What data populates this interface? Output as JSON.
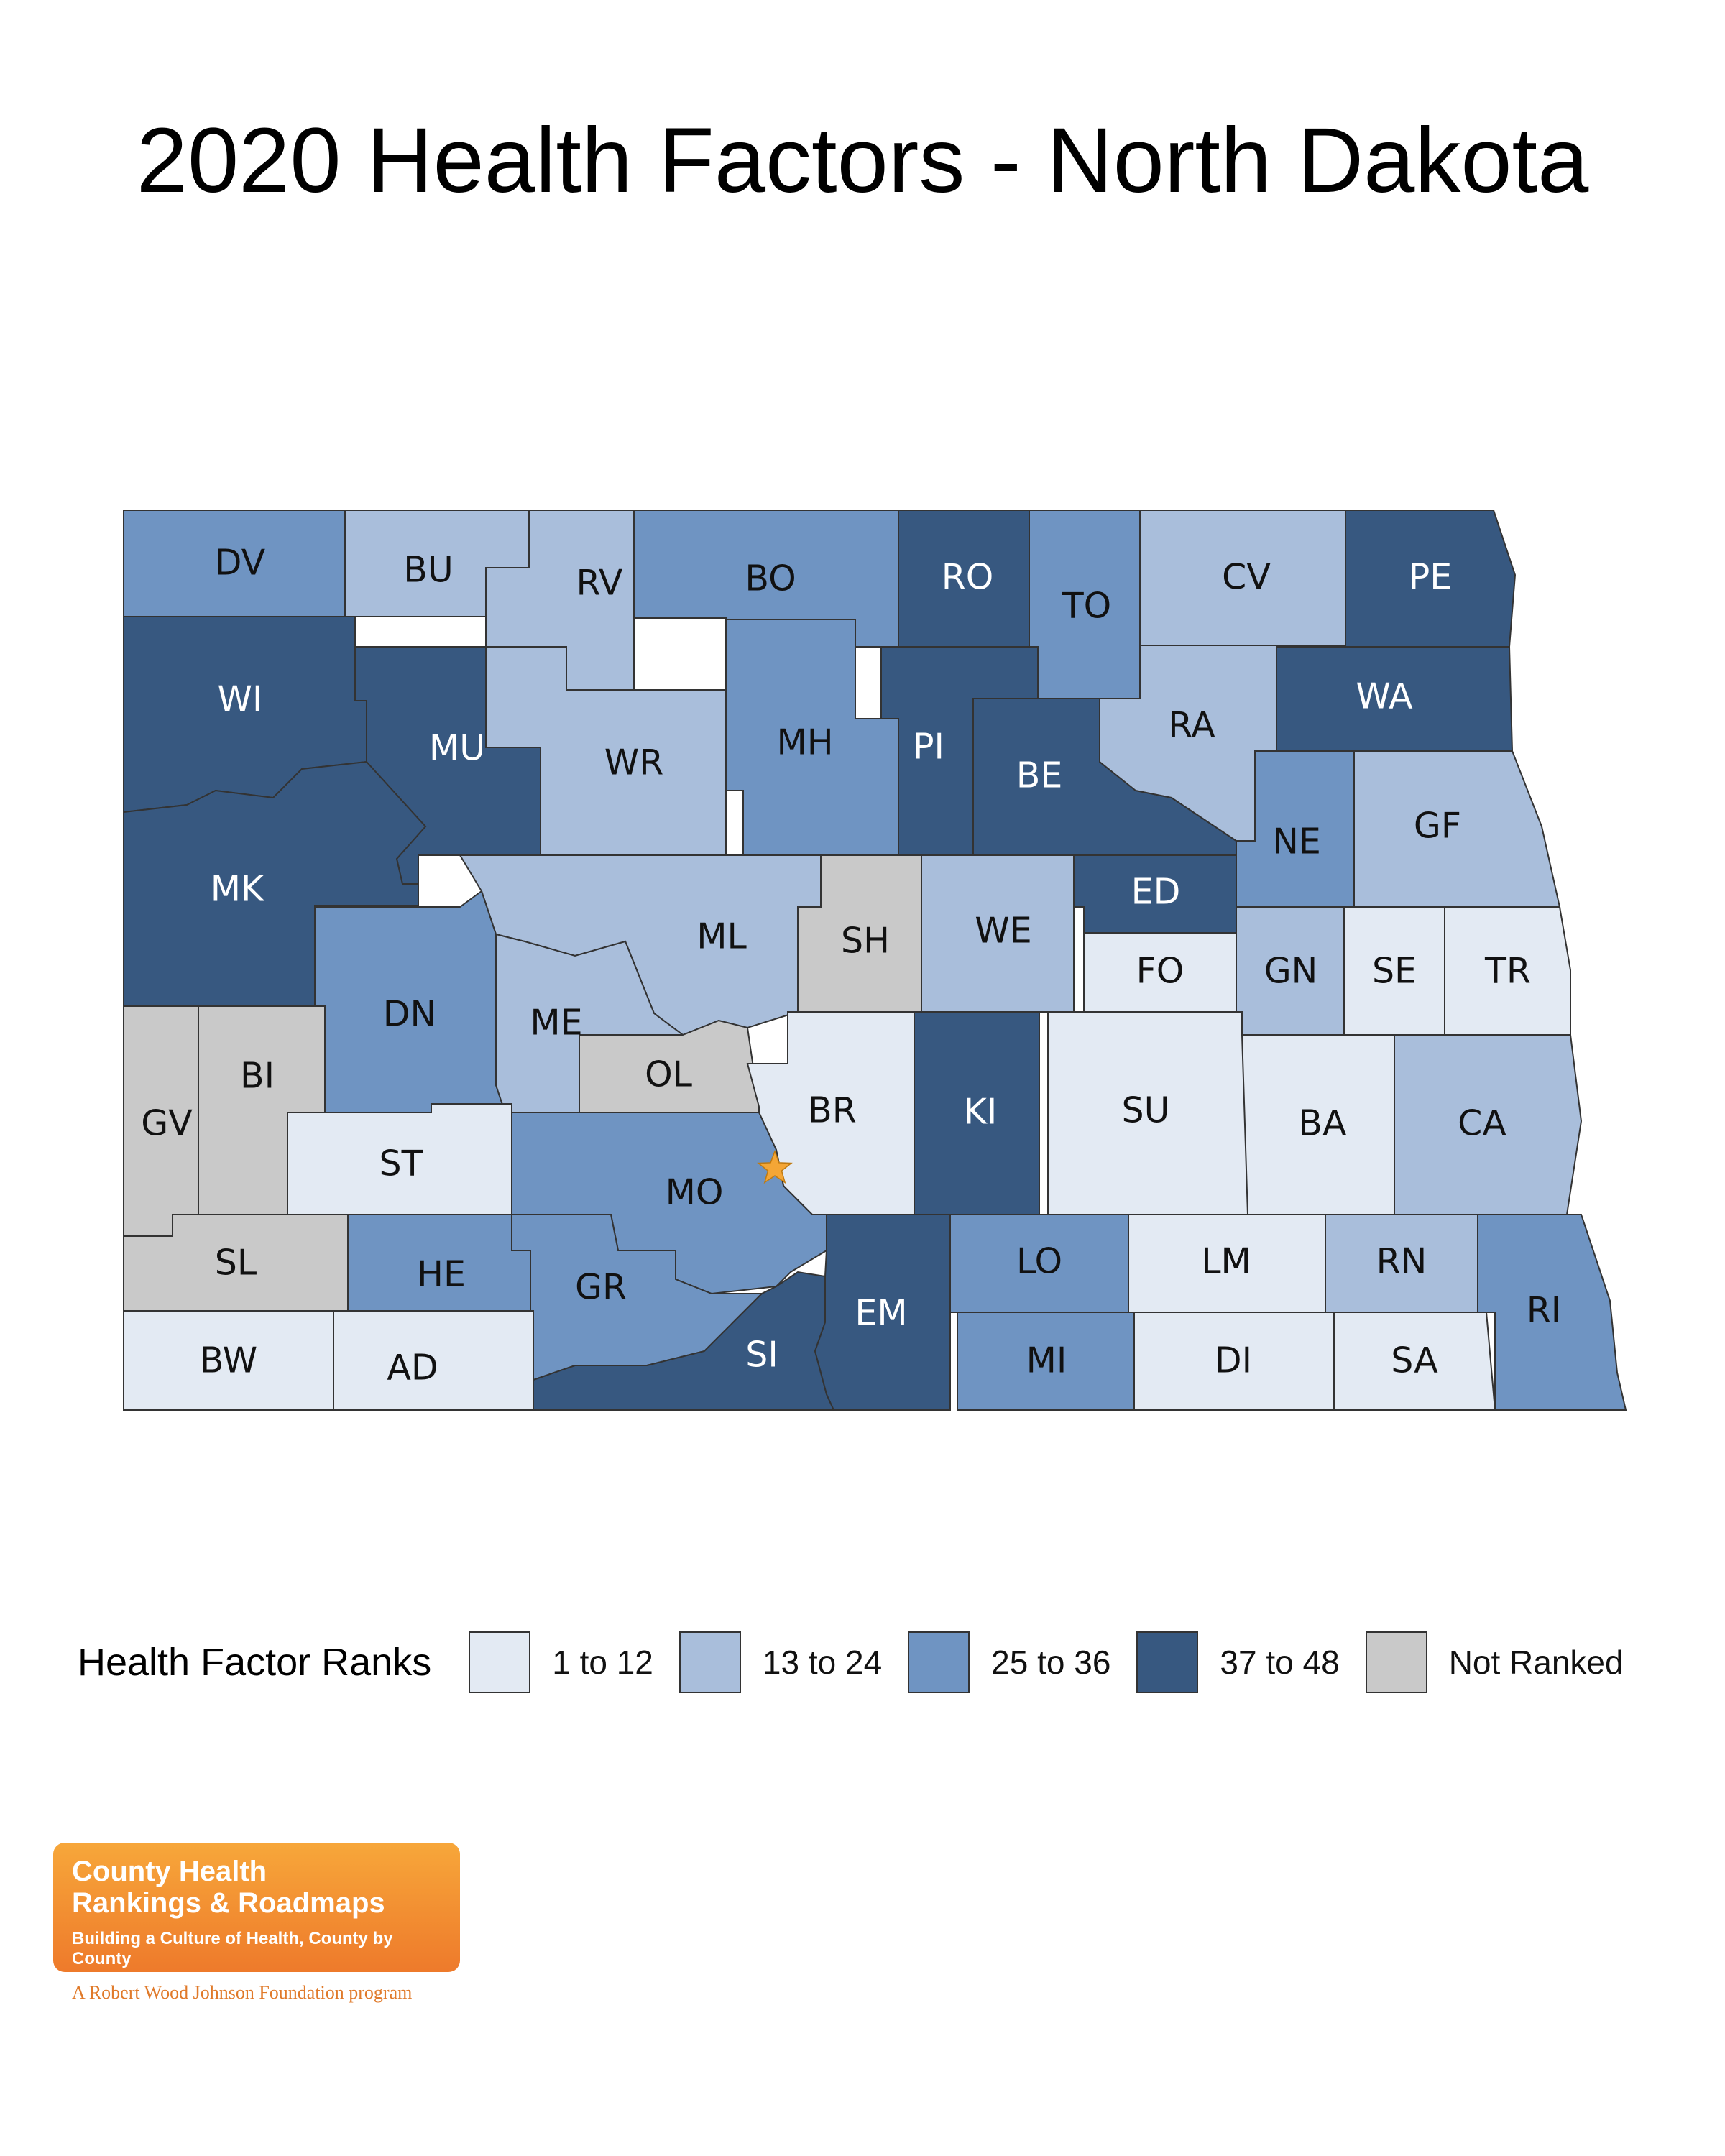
{
  "title": "2020 Health Factors - North Dakota",
  "colors": {
    "q1": "#e3eaf3",
    "q2": "#a9bedb",
    "q3": "#6f94c2",
    "q4": "#375880",
    "nr": "#c9c9c9",
    "marker": "#f4a636"
  },
  "legend": {
    "title": "Health Factor Ranks",
    "items": [
      {
        "label": "1 to 12",
        "key": "q1"
      },
      {
        "label": "13 to 24",
        "key": "q2"
      },
      {
        "label": "25 to 36",
        "key": "q3"
      },
      {
        "label": "37 to 48",
        "key": "q4"
      },
      {
        "label": "Not Ranked",
        "key": "nr"
      }
    ]
  },
  "counties": [
    {
      "abbr": "DV",
      "rank_group": "q3"
    },
    {
      "abbr": "BU",
      "rank_group": "q2"
    },
    {
      "abbr": "RV",
      "rank_group": "q2"
    },
    {
      "abbr": "BO",
      "rank_group": "q3"
    },
    {
      "abbr": "RO",
      "rank_group": "q4"
    },
    {
      "abbr": "TO",
      "rank_group": "q3"
    },
    {
      "abbr": "CV",
      "rank_group": "q2"
    },
    {
      "abbr": "PE",
      "rank_group": "q4"
    },
    {
      "abbr": "WI",
      "rank_group": "q4"
    },
    {
      "abbr": "MU",
      "rank_group": "q4"
    },
    {
      "abbr": "WR",
      "rank_group": "q2"
    },
    {
      "abbr": "MH",
      "rank_group": "q3"
    },
    {
      "abbr": "PI",
      "rank_group": "q4"
    },
    {
      "abbr": "BE",
      "rank_group": "q4"
    },
    {
      "abbr": "RA",
      "rank_group": "q2"
    },
    {
      "abbr": "WA",
      "rank_group": "q4"
    },
    {
      "abbr": "MK",
      "rank_group": "q4"
    },
    {
      "abbr": "NE",
      "rank_group": "q3"
    },
    {
      "abbr": "GF",
      "rank_group": "q2"
    },
    {
      "abbr": "ML",
      "rank_group": "q2"
    },
    {
      "abbr": "SH",
      "rank_group": "nr"
    },
    {
      "abbr": "WE",
      "rank_group": "q2"
    },
    {
      "abbr": "ED",
      "rank_group": "q4"
    },
    {
      "abbr": "FO",
      "rank_group": "q1"
    },
    {
      "abbr": "GN",
      "rank_group": "q2"
    },
    {
      "abbr": "SE",
      "rank_group": "q1"
    },
    {
      "abbr": "TR",
      "rank_group": "q1"
    },
    {
      "abbr": "DN",
      "rank_group": "q3"
    },
    {
      "abbr": "ME",
      "rank_group": "q2"
    },
    {
      "abbr": "OL",
      "rank_group": "nr"
    },
    {
      "abbr": "BR",
      "rank_group": "q1"
    },
    {
      "abbr": "KI",
      "rank_group": "q4"
    },
    {
      "abbr": "SU",
      "rank_group": "q1"
    },
    {
      "abbr": "BA",
      "rank_group": "q1"
    },
    {
      "abbr": "CA",
      "rank_group": "q2"
    },
    {
      "abbr": "GV",
      "rank_group": "nr"
    },
    {
      "abbr": "BI",
      "rank_group": "nr"
    },
    {
      "abbr": "ST",
      "rank_group": "q1"
    },
    {
      "abbr": "MO",
      "rank_group": "q3"
    },
    {
      "abbr": "SL",
      "rank_group": "nr"
    },
    {
      "abbr": "HE",
      "rank_group": "q3"
    },
    {
      "abbr": "GR",
      "rank_group": "q3"
    },
    {
      "abbr": "SI",
      "rank_group": "q4"
    },
    {
      "abbr": "EM",
      "rank_group": "q4"
    },
    {
      "abbr": "LO",
      "rank_group": "q3"
    },
    {
      "abbr": "LM",
      "rank_group": "q1"
    },
    {
      "abbr": "RN",
      "rank_group": "q2"
    },
    {
      "abbr": "RI",
      "rank_group": "q3"
    },
    {
      "abbr": "BW",
      "rank_group": "q1"
    },
    {
      "abbr": "AD",
      "rank_group": "q1"
    },
    {
      "abbr": "MI",
      "rank_group": "q3"
    },
    {
      "abbr": "DI",
      "rank_group": "q1"
    },
    {
      "abbr": "SA",
      "rank_group": "q1"
    }
  ],
  "logo": {
    "line1": "County Health",
    "line2": "Rankings & Roadmaps",
    "tagline": "Building a Culture of Health, County by County",
    "subline": "A Robert Wood Johnson Foundation program"
  }
}
